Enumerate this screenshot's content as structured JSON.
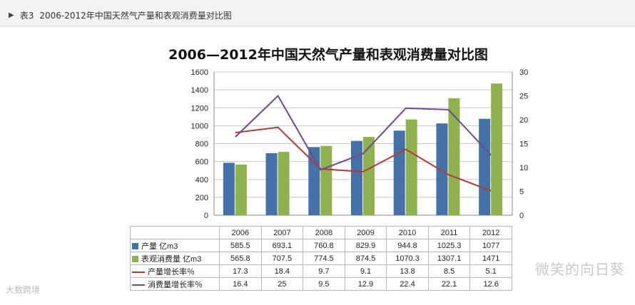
{
  "caption": {
    "marker": "▶",
    "label": "表3",
    "text": "2006-2012年中国天然气产量和表观消费量对比图"
  },
  "chart_data": {
    "type": "bar",
    "title": "2006—2012年中国天然气产量和表观消费量对比图",
    "categories": [
      "2006",
      "2007",
      "2008",
      "2009",
      "2010",
      "2011",
      "2012"
    ],
    "ylim": [
      0,
      1600
    ],
    "y_ticks": [
      "0",
      "200",
      "400",
      "600",
      "800",
      "1000",
      "1200",
      "1400",
      "1600"
    ],
    "y2lim": [
      0,
      30
    ],
    "y2_ticks": [
      "0",
      "5",
      "10",
      "15",
      "20",
      "25",
      "30"
    ],
    "grid": true,
    "series": [
      {
        "name": "产量 亿m3",
        "kind": "bar",
        "axis": "left",
        "color": "#4472a8",
        "labels": [
          "585.5",
          "693.1",
          "760.8",
          "829.9",
          "944.8",
          "1025.3",
          "1077"
        ],
        "values": [
          585.5,
          693.1,
          760.8,
          829.9,
          944.8,
          1025.3,
          1077
        ]
      },
      {
        "name": "表观消费量 亿m3",
        "kind": "bar",
        "axis": "left",
        "color": "#8fb14e",
        "labels": [
          "565.8",
          "707.5",
          "774.5",
          "874.5",
          "1070.3",
          "1307.1",
          "1471"
        ],
        "values": [
          565.8,
          707.5,
          774.5,
          874.5,
          1070.3,
          1307.1,
          1471
        ]
      },
      {
        "name": "产量增长率％",
        "kind": "line",
        "axis": "right",
        "color": "#b03a35",
        "labels": [
          "17.3",
          "18.4",
          "9.7",
          "9.1",
          "13.8",
          "8.5",
          "5.1"
        ],
        "values": [
          17.3,
          18.4,
          9.7,
          9.1,
          13.8,
          8.5,
          5.1
        ]
      },
      {
        "name": "消费量增长率％",
        "kind": "line",
        "axis": "right",
        "color": "#6d4a8e",
        "labels": [
          "16.4",
          "25",
          "9.5",
          "12.9",
          "22.4",
          "22.1",
          "12.6"
        ],
        "values": [
          16.4,
          25,
          9.5,
          12.9,
          22.4,
          22.1,
          12.6
        ]
      }
    ]
  },
  "watermarks": {
    "left": "大数跨境",
    "right": "微笑的向日葵"
  }
}
